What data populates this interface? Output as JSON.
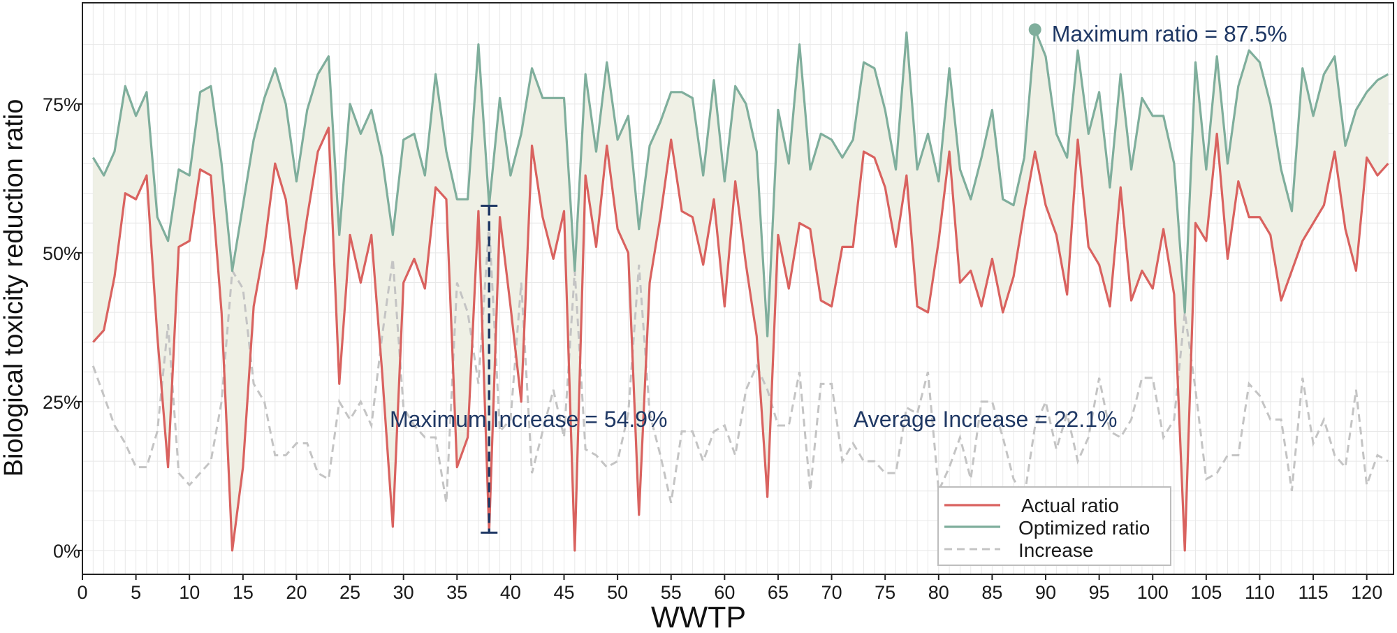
{
  "chart_data": {
    "type": "line",
    "title": "",
    "xlabel": "WWTP",
    "ylabel": "Biological toxicity reduction ratio",
    "xlim": [
      0,
      122.5
    ],
    "ylim": [
      -0.04,
      0.92
    ],
    "x_ticks": [
      0,
      5,
      10,
      15,
      20,
      25,
      30,
      35,
      40,
      45,
      50,
      55,
      60,
      65,
      70,
      75,
      80,
      85,
      90,
      95,
      100,
      105,
      110,
      115,
      120
    ],
    "x_tick_labels": [
      "0",
      "5",
      "10",
      "15",
      "20",
      "25",
      "30",
      "35",
      "40",
      "45",
      "50",
      "55",
      "60",
      "65",
      "70",
      "75",
      "80",
      "85",
      "90",
      "95",
      "100",
      "105",
      "110",
      "115",
      "120"
    ],
    "y_ticks": [
      0,
      0.25,
      0.5,
      0.75
    ],
    "y_tick_labels": [
      "0%",
      "25%",
      "50%",
      "75%"
    ],
    "grid": true,
    "legend_position": "bottom-right",
    "colors": {
      "actual": "#d9625f",
      "optimized": "#7fae9c",
      "increase": "#c4c4c4",
      "fill": "#eff0e5",
      "annotation": "#1f3864",
      "grid": "#e8e8e8"
    },
    "series": [
      {
        "name": "Actual ratio",
        "key": "actual",
        "style": "solid",
        "values": [
          0.35,
          0.37,
          0.46,
          0.6,
          0.59,
          0.63,
          0.36,
          0.14,
          0.51,
          0.52,
          0.64,
          0.63,
          0.4,
          0.0,
          0.14,
          0.41,
          0.51,
          0.65,
          0.59,
          0.44,
          0.56,
          0.67,
          0.71,
          0.28,
          0.53,
          0.45,
          0.53,
          0.3,
          0.04,
          0.45,
          0.49,
          0.44,
          0.61,
          0.59,
          0.14,
          0.19,
          0.57,
          0.03,
          0.56,
          0.41,
          0.25,
          0.68,
          0.56,
          0.49,
          0.57,
          0.0,
          0.63,
          0.51,
          0.68,
          0.54,
          0.5,
          0.06,
          0.45,
          0.56,
          0.69,
          0.57,
          0.56,
          0.48,
          0.59,
          0.41,
          0.62,
          0.48,
          0.36,
          0.09,
          0.53,
          0.44,
          0.55,
          0.54,
          0.42,
          0.41,
          0.51,
          0.51,
          0.67,
          0.66,
          0.61,
          0.51,
          0.63,
          0.41,
          0.4,
          0.52,
          0.67,
          0.45,
          0.47,
          0.41,
          0.49,
          0.4,
          0.46,
          0.57,
          0.67,
          0.58,
          0.53,
          0.43,
          0.69,
          0.51,
          0.48,
          0.41,
          0.61,
          0.42,
          0.47,
          0.44,
          0.54,
          0.43,
          0.0,
          0.55,
          0.52,
          0.7,
          0.49,
          0.62,
          0.56,
          0.56,
          0.53,
          0.42,
          0.47,
          0.52,
          0.55,
          0.58,
          0.67,
          0.54,
          0.47,
          0.66,
          0.63,
          0.65
        ]
      },
      {
        "name": "Optimized ratio",
        "key": "optimized",
        "style": "solid",
        "values": [
          0.66,
          0.63,
          0.67,
          0.78,
          0.73,
          0.77,
          0.56,
          0.52,
          0.64,
          0.63,
          0.77,
          0.78,
          0.65,
          0.47,
          0.58,
          0.69,
          0.76,
          0.81,
          0.75,
          0.62,
          0.74,
          0.8,
          0.83,
          0.53,
          0.75,
          0.7,
          0.74,
          0.66,
          0.53,
          0.69,
          0.7,
          0.63,
          0.8,
          0.67,
          0.59,
          0.59,
          0.85,
          0.58,
          0.76,
          0.63,
          0.7,
          0.81,
          0.76,
          0.76,
          0.76,
          0.47,
          0.8,
          0.67,
          0.82,
          0.69,
          0.73,
          0.54,
          0.68,
          0.72,
          0.77,
          0.77,
          0.76,
          0.63,
          0.79,
          0.62,
          0.78,
          0.75,
          0.67,
          0.36,
          0.74,
          0.65,
          0.85,
          0.64,
          0.7,
          0.69,
          0.66,
          0.69,
          0.82,
          0.81,
          0.74,
          0.64,
          0.87,
          0.64,
          0.7,
          0.62,
          0.81,
          0.64,
          0.59,
          0.66,
          0.74,
          0.59,
          0.58,
          0.66,
          0.875,
          0.83,
          0.7,
          0.66,
          0.84,
          0.7,
          0.77,
          0.61,
          0.8,
          0.64,
          0.76,
          0.73,
          0.73,
          0.65,
          0.4,
          0.82,
          0.64,
          0.83,
          0.65,
          0.78,
          0.84,
          0.82,
          0.75,
          0.64,
          0.57,
          0.81,
          0.73,
          0.8,
          0.83,
          0.68,
          0.74,
          0.77,
          0.79,
          0.8
        ]
      },
      {
        "name": "Increase",
        "key": "increase",
        "style": "dashed",
        "values": [
          0.31,
          0.26,
          0.21,
          0.18,
          0.14,
          0.14,
          0.2,
          0.38,
          0.13,
          0.11,
          0.13,
          0.15,
          0.25,
          0.47,
          0.44,
          0.28,
          0.25,
          0.16,
          0.16,
          0.18,
          0.18,
          0.13,
          0.12,
          0.25,
          0.22,
          0.25,
          0.21,
          0.36,
          0.49,
          0.24,
          0.21,
          0.19,
          0.19,
          0.08,
          0.45,
          0.4,
          0.28,
          0.549,
          0.2,
          0.22,
          0.45,
          0.13,
          0.2,
          0.27,
          0.19,
          0.47,
          0.17,
          0.16,
          0.14,
          0.15,
          0.23,
          0.48,
          0.23,
          0.16,
          0.08,
          0.2,
          0.2,
          0.15,
          0.2,
          0.21,
          0.16,
          0.27,
          0.31,
          0.27,
          0.21,
          0.21,
          0.3,
          0.1,
          0.28,
          0.28,
          0.15,
          0.18,
          0.15,
          0.15,
          0.13,
          0.13,
          0.24,
          0.23,
          0.3,
          0.1,
          0.14,
          0.19,
          0.12,
          0.25,
          0.25,
          0.19,
          0.12,
          0.09,
          0.208,
          0.25,
          0.17,
          0.23,
          0.15,
          0.19,
          0.29,
          0.2,
          0.19,
          0.22,
          0.29,
          0.29,
          0.19,
          0.22,
          0.4,
          0.27,
          0.12,
          0.13,
          0.16,
          0.16,
          0.28,
          0.26,
          0.22,
          0.22,
          0.1,
          0.29,
          0.18,
          0.22,
          0.16,
          0.14,
          0.27,
          0.11,
          0.16,
          0.15
        ]
      }
    ],
    "legend": [
      "Actual ratio",
      "Optimized ratio",
      "Increase"
    ],
    "annotations": {
      "max_ratio": {
        "text": "Maximum ratio = 87.5%",
        "x": 89,
        "y": 0.875
      },
      "max_increase": {
        "text": "Maximum Increase = 54.9%",
        "x": 38,
        "y_low": 0.03,
        "y_high": 0.579
      },
      "avg_increase": {
        "text": "Average Increase = 22.1%"
      }
    }
  }
}
